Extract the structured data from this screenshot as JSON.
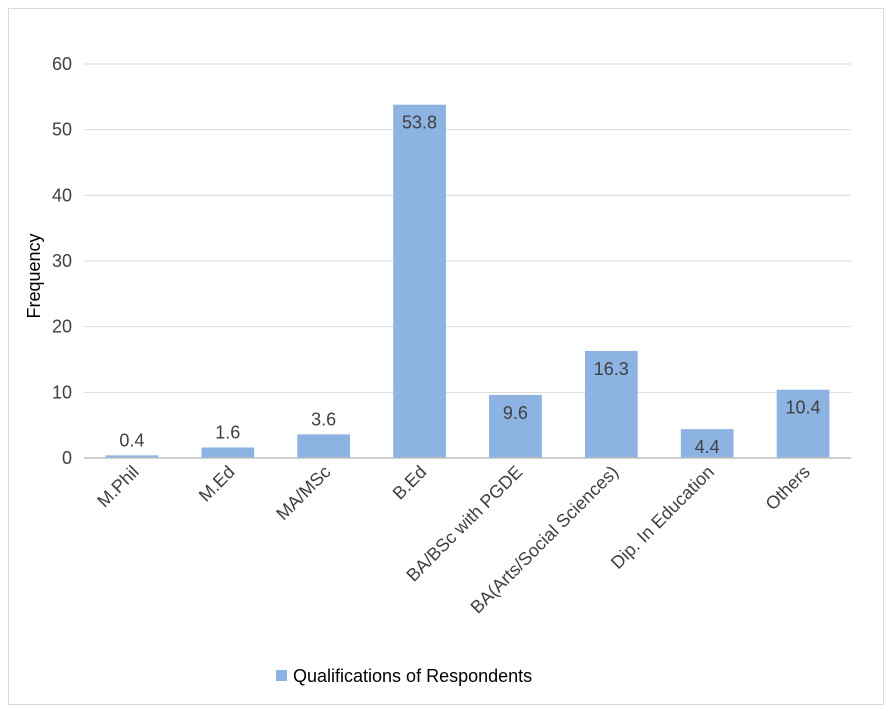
{
  "chart_data": {
    "type": "bar",
    "title": "",
    "xlabel": "",
    "ylabel": "Frequency",
    "ylim": [
      0,
      60
    ],
    "yticks": [
      0,
      10,
      20,
      30,
      40,
      50,
      60
    ],
    "grid": true,
    "legend_position": "bottom",
    "bar_color": "#8DB3E2",
    "categories": [
      "M.Phil",
      "M.Ed",
      "MA/MSc",
      "B.Ed",
      "BA/BSc with PGDE",
      "BA(Arts/Social Sciences)",
      "Dip. In Education",
      "Others"
    ],
    "series": [
      {
        "name": "Qualifications of Respondents",
        "values": [
          0.4,
          1.6,
          3.6,
          53.8,
          9.6,
          16.3,
          4.4,
          10.4
        ],
        "data_labels": [
          "0.4",
          "1.6",
          "3.6",
          "53.8",
          "9.6",
          "16.3",
          "4.4",
          "10.4"
        ]
      }
    ]
  }
}
